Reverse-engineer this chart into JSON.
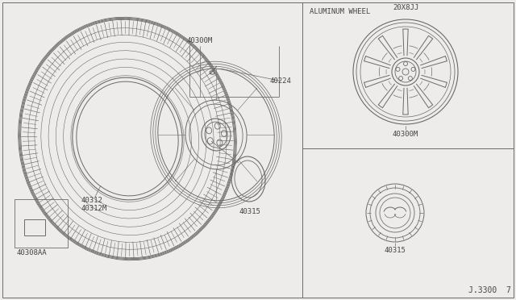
{
  "bg_color": "#eeecea",
  "line_color": "#6a6a6a",
  "text_color": "#444444",
  "labels": {
    "aluminum_wheel": "ALUMINUM WHEEL",
    "part_40300M_top": "40300M",
    "part_40224": "40224",
    "part_40312": "40312",
    "part_40312M": "40312M",
    "part_40308AA": "40308AA",
    "part_40315_main": "40315",
    "part_40300M_right": "40300M",
    "part_40315_right": "40315",
    "part_20X8JJ": "20X8JJ",
    "diagram_ref": "J.3300  7"
  },
  "font_size_label": 6.5,
  "font_size_ref": 7.0
}
